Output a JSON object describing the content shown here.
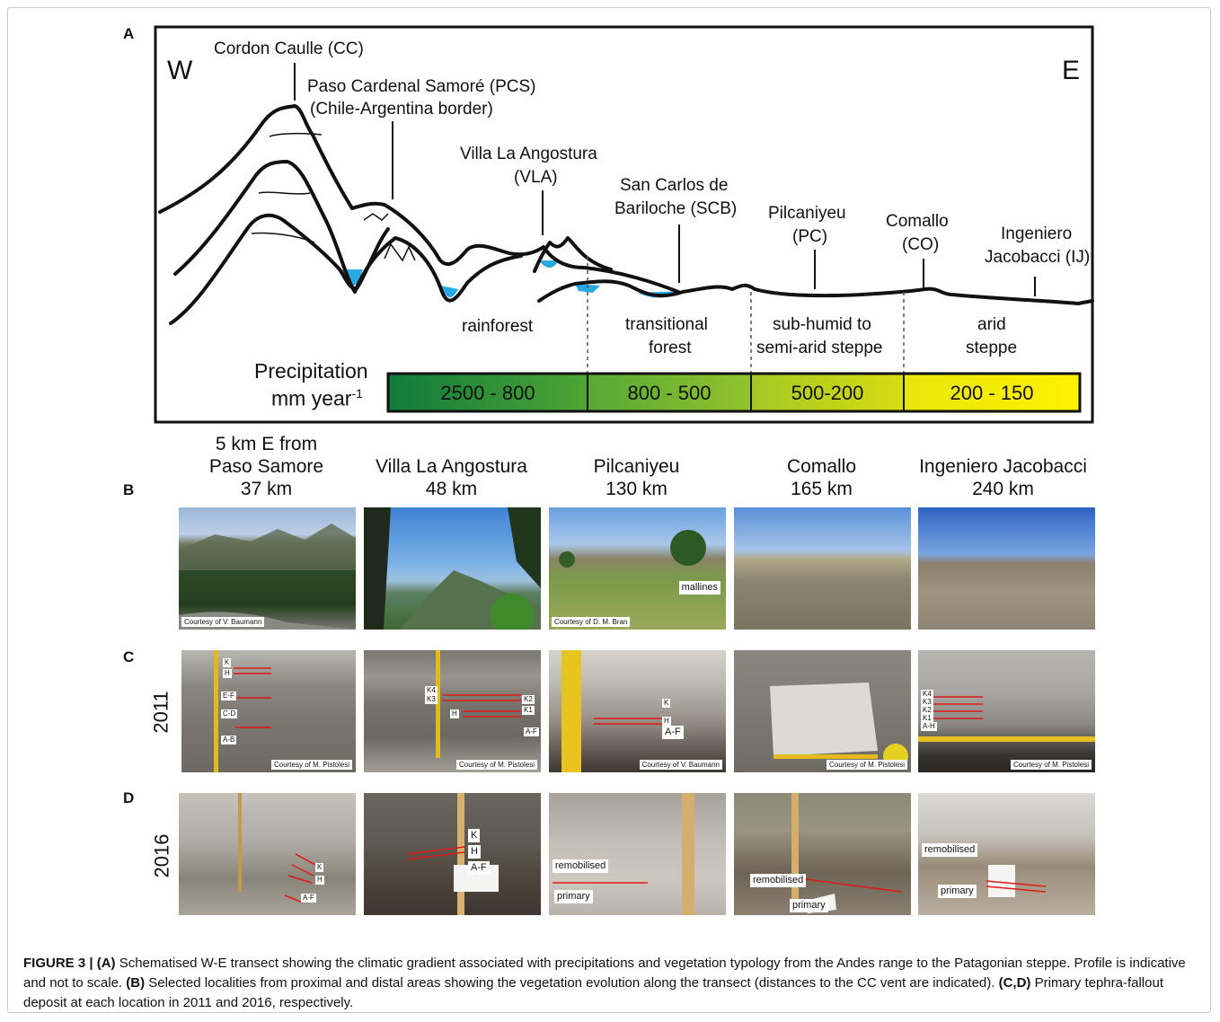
{
  "panel_a": {
    "letter": "A",
    "west": "W",
    "east": "E",
    "labels": {
      "cc": "Cordon Caulle (CC)",
      "pcs1": "Paso Cardenal Samoré (PCS)",
      "pcs2": "(Chile-Argentina border)",
      "vla1": "Villa La Angostura",
      "vla2": "(VLA)",
      "scb1": "San Carlos de",
      "scb2": "Bariloche (SCB)",
      "pc1": "Pilcaniyeu",
      "pc2": "(PC)",
      "co1": "Comallo",
      "co2": "(CO)",
      "ij1": "Ingeniero",
      "ij2": "Jacobacci (IJ)"
    },
    "zones": {
      "rainforest": "rainforest",
      "trans1": "transitional",
      "trans2": "forest",
      "steppe1": "sub-humid to",
      "steppe2": "semi-arid steppe",
      "arid1": "arid",
      "arid2": "steppe"
    },
    "precip_title1": "Precipitation",
    "precip_title2": "mm year",
    "precip_sup": "-1",
    "precip_bins": [
      "2500 - 800",
      "800 - 500",
      "500-200",
      "200 - 150"
    ],
    "colors": {
      "water": "#29a9e1",
      "green_dark": "#0f7a3a",
      "green_mid": "#63b037",
      "yellow_green": "#c6d41d",
      "yellow": "#fff200"
    }
  },
  "panel_b": {
    "letter": "B",
    "locations": [
      {
        "line1": "5 km E from",
        "line2": "Paso Samore",
        "line3": "37 km"
      },
      {
        "line1": "",
        "line2": "Villa La Angostura",
        "line3": "48 km"
      },
      {
        "line1": "",
        "line2": "Pilcaniyeu",
        "line3": "130 km"
      },
      {
        "line1": "",
        "line2": "Comallo",
        "line3": "165 km"
      },
      {
        "line1": "",
        "line2": "Ingeniero Jacobacci",
        "line3": "240 km"
      }
    ],
    "credit_1": "Courtesy of V. Baumann",
    "mallines": "mallines",
    "credit_3": "Courtesy of D. M. Bran"
  },
  "panel_c": {
    "letter": "C",
    "year": "2011",
    "p1": {
      "k": "K",
      "h": "H",
      "ef": "E-F",
      "cd": "C-D",
      "ab": "A-B",
      "credit": "Courtesy of M. Pistolesi"
    },
    "p2": {
      "k4": "K4",
      "k3": "K3",
      "k2": "K2",
      "k1": "K1",
      "h": "H",
      "af": "A-F",
      "credit": "Courtesy of M. Pistolesi"
    },
    "p3": {
      "k": "K",
      "h": "H",
      "af": "A-F",
      "credit": "Courtesy of V. Baumann"
    },
    "p4": {
      "credit": "Courtesy of M. Pistolesi"
    },
    "p5": {
      "k4": "K4",
      "k3": "K3",
      "k2": "K2",
      "k1": "K1",
      "ah": "A-H",
      "credit": "Courtesy of M. Pistolesi"
    }
  },
  "panel_d": {
    "letter": "D",
    "year": "2016",
    "p1": {
      "k": "K",
      "h": "H",
      "af": "A-F"
    },
    "p2": {
      "k": "K",
      "h": "H",
      "af": "A-F"
    },
    "p3": {
      "remob": "remobilised",
      "primary": "primary"
    },
    "p4": {
      "remob": "remobilised",
      "primary": "primary"
    },
    "p5": {
      "remob": "remobilised",
      "primary": "primary"
    }
  },
  "caption": {
    "fig": "FIGURE 3 |",
    "a": "(A)",
    "a_text": " Schematised W-E transect showing the climatic gradient associated with precipitations and vegetation typology from the Andes range to the Patagonian steppe. Profile is indicative and not to scale. ",
    "b": "(B)",
    "b_text": " Selected localities from proximal and distal areas showing the vegetation evolution along the transect (distances to the CC vent are indicated). ",
    "cd": "(C,D)",
    "cd_text": " Primary tephra-fallout deposit at each location in 2011 and 2016, respectively."
  }
}
